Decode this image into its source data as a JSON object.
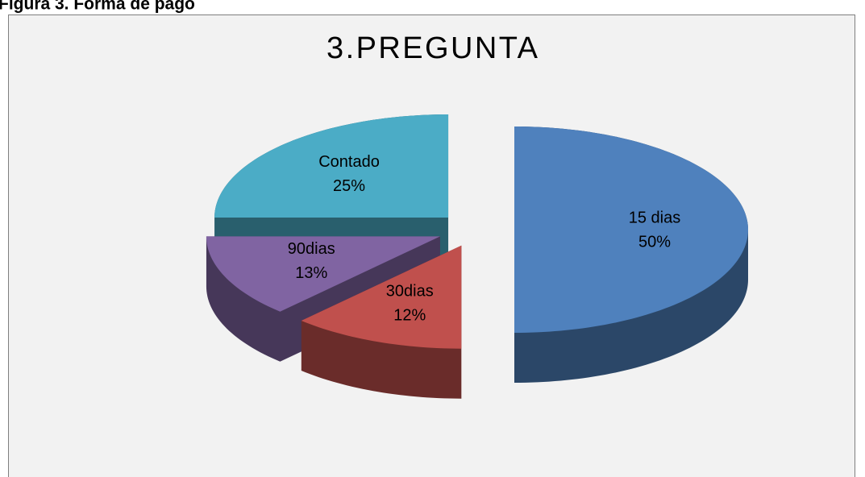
{
  "caption": "Figura 3. Forma de pago",
  "chart_data": {
    "type": "pie",
    "title": "3.PREGUNTA",
    "categories": [
      "15 dias",
      "30dias",
      "90dias",
      "Contado"
    ],
    "values": [
      50,
      12,
      13,
      25
    ],
    "value_labels": [
      "50%",
      "12%",
      "13%",
      "25%"
    ],
    "colors": [
      "#4f81bd",
      "#c0504d",
      "#8064a2",
      "#4bacc6"
    ],
    "exploded": true,
    "three_d": true
  }
}
